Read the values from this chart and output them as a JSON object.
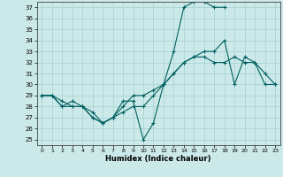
{
  "xlabel": "Humidex (Indice chaleur)",
  "xlim": [
    -0.5,
    23.5
  ],
  "ylim": [
    24.5,
    37.5
  ],
  "yticks": [
    25,
    26,
    27,
    28,
    29,
    30,
    31,
    32,
    33,
    34,
    35,
    36,
    37
  ],
  "xticks": [
    0,
    1,
    2,
    3,
    4,
    5,
    6,
    7,
    8,
    9,
    10,
    11,
    12,
    13,
    14,
    15,
    16,
    17,
    18,
    19,
    20,
    21,
    22,
    23
  ],
  "bg_color": "#cce9e9",
  "grid_color": "#aad4d4",
  "line_color": "#006060",
  "lines": [
    {
      "x": [
        0,
        1,
        2,
        3,
        4,
        5,
        6,
        7,
        8,
        9,
        10,
        11,
        12,
        13,
        14,
        15,
        16,
        17,
        18
      ],
      "y": [
        29,
        29,
        28,
        28,
        28,
        27,
        26.5,
        27,
        28.5,
        28.5,
        25,
        26.5,
        30,
        33,
        37,
        37.5,
        37.5,
        37,
        37
      ]
    },
    {
      "x": [
        0,
        1,
        2,
        3,
        4,
        5,
        6,
        7,
        8,
        9,
        10,
        11,
        12,
        13,
        14,
        15,
        16,
        17,
        18,
        19,
        20,
        21,
        22,
        23
      ],
      "y": [
        29,
        29,
        28,
        28.5,
        28,
        27,
        26.5,
        27,
        28,
        29,
        29,
        29.5,
        30,
        31,
        32,
        32.5,
        32.5,
        32,
        32,
        32.5,
        32,
        32,
        30,
        30
      ]
    },
    {
      "x": [
        0,
        1,
        2,
        3,
        4,
        5,
        6,
        7,
        8,
        9,
        10,
        11,
        12,
        13,
        14,
        15,
        16,
        17,
        18,
        19,
        20,
        21,
        22,
        23
      ],
      "y": [
        29,
        29,
        28.5,
        28,
        28,
        27.5,
        26.5,
        27,
        27.5,
        28,
        28,
        29,
        30,
        31,
        32,
        32.5,
        33,
        33,
        34,
        30,
        32.5,
        32,
        31,
        30
      ]
    }
  ]
}
